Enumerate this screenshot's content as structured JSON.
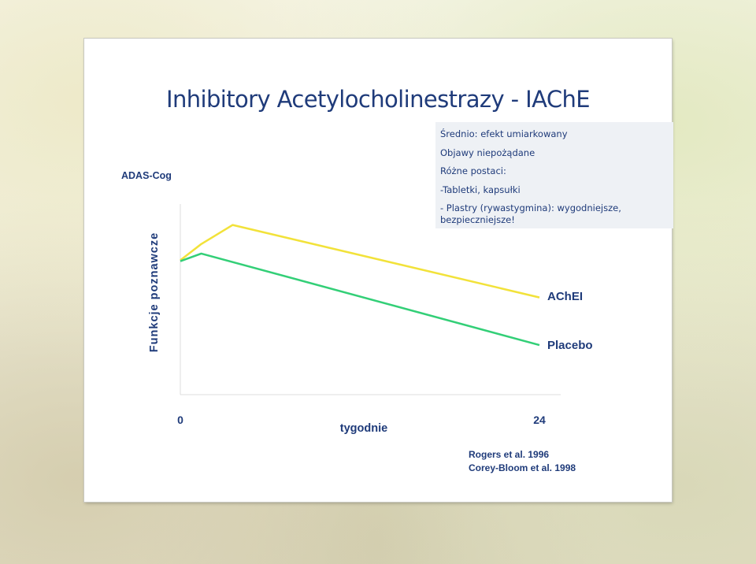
{
  "slide": {
    "title": "Inhibitory Acetylocholinestrazy - IAChE",
    "info_box": [
      "Średnio: efekt umiarkowany",
      "Objawy niepożądane",
      "Różne postaci:",
      "-Tabletki, kapsułki",
      "- Plastry (rywastygmina): wygodniejsze,",
      "bezpieczniejsze!"
    ],
    "sources": [
      "Rogers et al. 1996",
      "Corey-Bloom et al. 1998"
    ]
  },
  "chart_data": {
    "type": "line",
    "scale_label": "ADAS-Cog",
    "xlabel": "tygodnie",
    "ylabel": "Funkcje poznawcze",
    "x_tick_labels": [
      "0",
      "24"
    ],
    "xlim": [
      0,
      24
    ],
    "grid": false,
    "legend": "inline labels at line ends",
    "series": [
      {
        "name": "AChEI",
        "color": "#f2e23a",
        "points": [
          [
            0,
            70.5
          ],
          [
            1.4,
            79
          ],
          [
            3.5,
            89
          ],
          [
            24,
            51
          ]
        ]
      },
      {
        "name": "Placebo",
        "color": "#33cf77",
        "points": [
          [
            0,
            70
          ],
          [
            1.4,
            74
          ],
          [
            24,
            26
          ]
        ]
      }
    ]
  }
}
